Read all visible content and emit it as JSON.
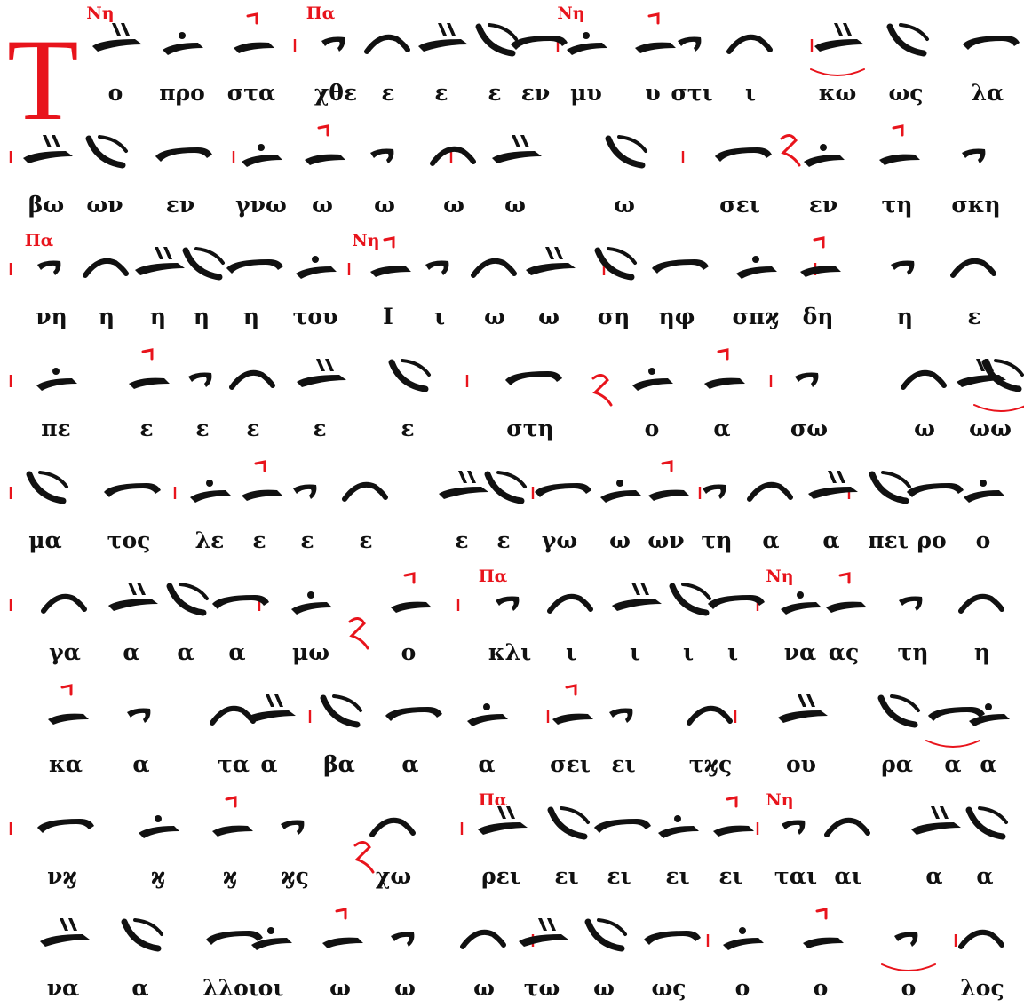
{
  "drop_cap": "Τ",
  "lines": [
    {
      "martyria": [
        "Νη",
        "Πα",
        "Νη"
      ],
      "syllables": [
        "ο",
        "προ",
        "στα",
        "χθε",
        "ε",
        "ε",
        "ε",
        "εν",
        "μυ",
        "υ",
        "στι",
        "ι",
        "κω",
        "ως",
        "λα"
      ]
    },
    {
      "martyria": [],
      "syllables": [
        "βω",
        "ων",
        "εν",
        "γνω",
        "ω",
        "ω",
        "ω",
        "ω",
        "ω",
        "σει",
        "εν",
        "τη",
        "σκη"
      ]
    },
    {
      "martyria": [
        "Πα",
        "Νη"
      ],
      "syllables": [
        "νη",
        "η",
        "η",
        "η",
        "η",
        "του",
        "Ι",
        "ι",
        "ω",
        "ω",
        "ση",
        "ηφ",
        "σπϗ",
        "δη",
        "η",
        "ε"
      ]
    },
    {
      "martyria": [],
      "syllables": [
        "πε",
        "ε",
        "ε",
        "ε",
        "ε",
        "ε",
        "στη",
        "ο",
        "α",
        "σω",
        "ω",
        "ω",
        "ω"
      ]
    },
    {
      "martyria": [],
      "syllables": [
        "μα",
        "τος",
        "λε",
        "ε",
        "ε",
        "ε",
        "ε",
        "ε",
        "γω",
        "ω",
        "ων",
        "τη",
        "α",
        "α",
        "πει",
        "ρο",
        "ο"
      ]
    },
    {
      "martyria": [
        "Πα",
        "Νη"
      ],
      "syllables": [
        "γα",
        "α",
        "α",
        "α",
        "μω",
        "ο",
        "κλι",
        "ι",
        "ι",
        "ι",
        "ι",
        "να",
        "ας",
        "τη",
        "η"
      ]
    },
    {
      "martyria": [],
      "syllables": [
        "κα",
        "α",
        "τα",
        "α",
        "βα",
        "α",
        "α",
        "σει",
        "ει",
        "τϗς",
        "ου",
        "ρα",
        "α",
        "α"
      ]
    },
    {
      "martyria": [
        "Πα",
        "Νη"
      ],
      "syllables": [
        "νϗ",
        "ϗ",
        "ϗ",
        "ϗς",
        "χω",
        "ρει",
        "ει",
        "ει",
        "ει",
        "ει",
        "ται",
        "αι",
        "α",
        "α"
      ]
    },
    {
      "martyria": [],
      "syllables": [
        "να",
        "α",
        "λλοι",
        "οι",
        "ω",
        "ω",
        "ω",
        "τω",
        "ω",
        "ως",
        "ο",
        "ο",
        "ο",
        "λος"
      ]
    }
  ],
  "colors": {
    "rubric": "#e8141c",
    "ink": "#111111"
  },
  "icons": [
    "byzantine-neume-icon",
    "red-fthora-icon",
    "red-martyria-signature-icon",
    "measure-bar-icon"
  ]
}
